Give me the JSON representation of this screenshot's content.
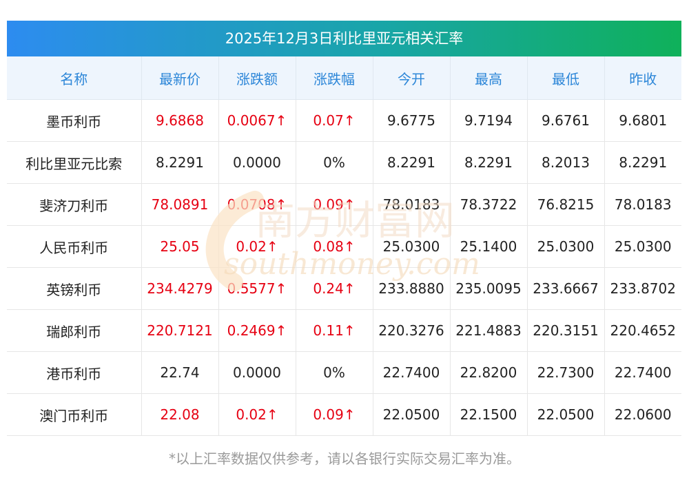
{
  "title": "2025年12月3日利比里亚元相关汇率",
  "headers": [
    "名称",
    "最新价",
    "涨跌额",
    "涨跌幅",
    "今开",
    "最高",
    "最低",
    "昨收"
  ],
  "rows": [
    {
      "name": "墨币利币",
      "latest": "9.6868",
      "change": "0.0067↑",
      "pct": "0.07↑",
      "open": "9.6775",
      "high": "9.7194",
      "low": "9.6761",
      "prev": "9.6801",
      "up": true
    },
    {
      "name": "利比里亚元比索",
      "latest": "8.2291",
      "change": "0.0000",
      "pct": "0%",
      "open": "8.2291",
      "high": "8.2291",
      "low": "8.2013",
      "prev": "8.2291",
      "up": false
    },
    {
      "name": "斐济刀利币",
      "latest": "78.0891",
      "change": "0.0708↑",
      "pct": "0.09↑",
      "open": "78.0183",
      "high": "78.3722",
      "low": "76.8215",
      "prev": "78.0183",
      "up": true
    },
    {
      "name": "人民币利币",
      "latest": "25.05",
      "change": "0.02↑",
      "pct": "0.08↑",
      "open": "25.0300",
      "high": "25.1400",
      "low": "25.0300",
      "prev": "25.0300",
      "up": true
    },
    {
      "name": "英镑利币",
      "latest": "234.4279",
      "change": "0.5577↑",
      "pct": "0.24↑",
      "open": "233.8880",
      "high": "235.0095",
      "low": "233.6667",
      "prev": "233.8702",
      "up": true
    },
    {
      "name": "瑞郎利币",
      "latest": "220.7121",
      "change": "0.2469↑",
      "pct": "0.11↑",
      "open": "220.3276",
      "high": "221.4883",
      "low": "220.3151",
      "prev": "220.4652",
      "up": true
    },
    {
      "name": "港币利币",
      "latest": "22.74",
      "change": "0.0000",
      "pct": "0%",
      "open": "22.7400",
      "high": "22.8200",
      "low": "22.7300",
      "prev": "22.7400",
      "up": false
    },
    {
      "name": "澳门币利币",
      "latest": "22.08",
      "change": "0.02↑",
      "pct": "0.09↑",
      "open": "22.0500",
      "high": "22.1500",
      "low": "22.0500",
      "prev": "22.0600",
      "up": true
    }
  ],
  "watermark": {
    "cn": "南方财富网",
    "en": "southmoney.com"
  },
  "footnote": "*以上汇率数据仅供参考，请以各银行实际交易汇率为准。",
  "colors": {
    "up": "#e60012",
    "header_text": "#2c86d8",
    "header_bg": "#eef5fd",
    "title_start": "#2d8cf0",
    "title_end": "#0fb15a"
  }
}
